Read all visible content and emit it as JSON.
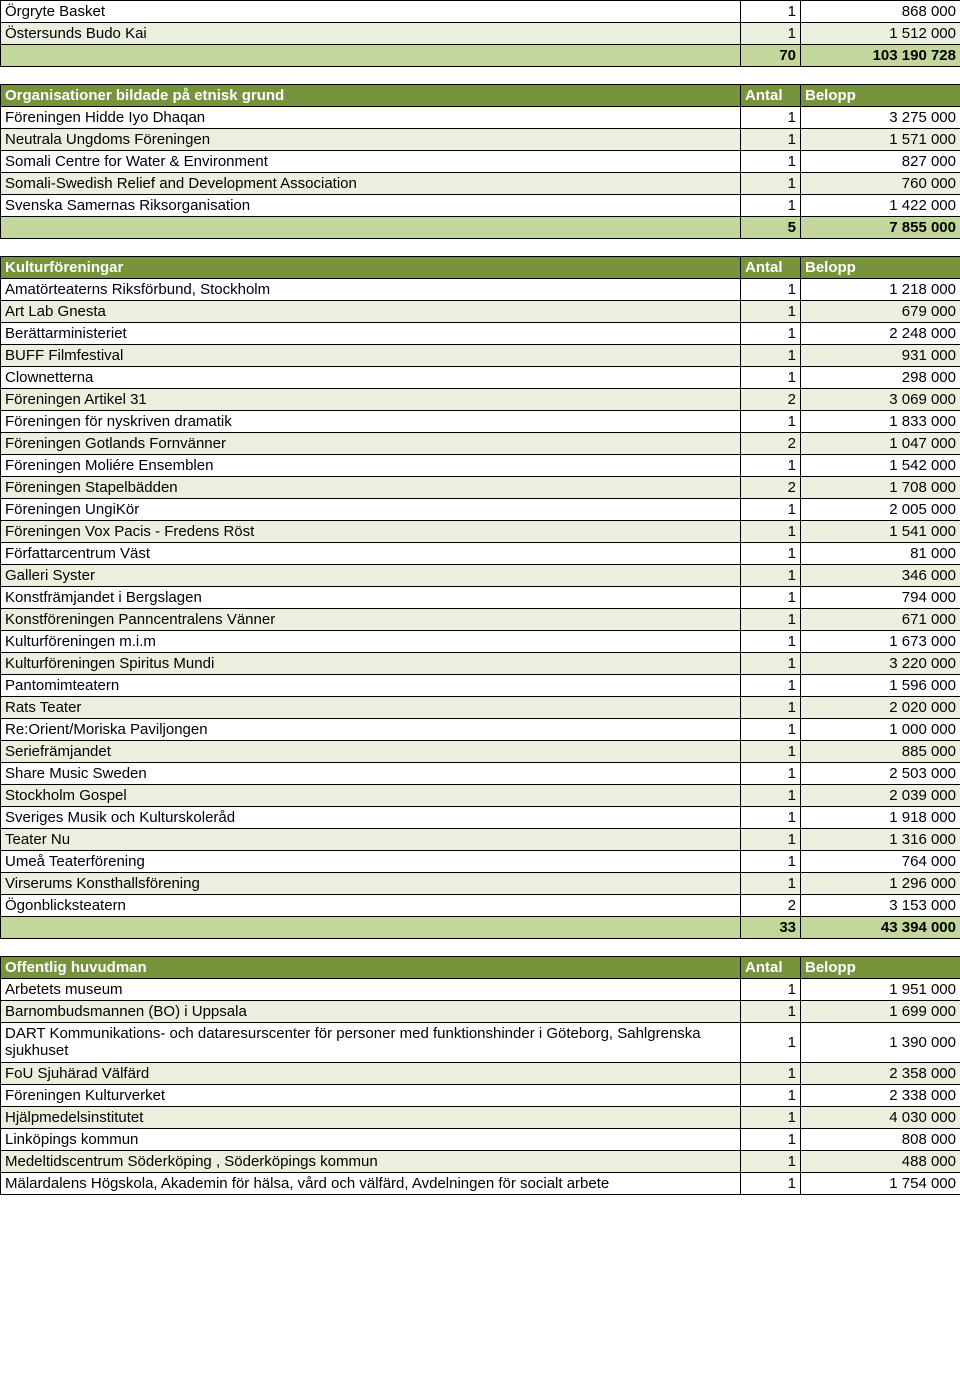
{
  "colors": {
    "row_light": "#ebf0de",
    "total_green": "#c3d69b",
    "header_green": "#77933c",
    "border": "#000000",
    "header_text": "#ffffff",
    "text": "#000000"
  },
  "section0_tail": {
    "rows": [
      {
        "name": "Örgryte Basket",
        "count": "1",
        "amount": "868 000"
      },
      {
        "name": "Östersunds Budo Kai",
        "count": "1",
        "amount": "1 512 000"
      }
    ],
    "total": {
      "count": "70",
      "amount": "103 190 728"
    }
  },
  "section1": {
    "header": {
      "title": "Organisationer bildade på etnisk grund",
      "col2": "Antal",
      "col3": "Belopp"
    },
    "rows": [
      {
        "name": "Föreningen Hidde Iyo Dhaqan",
        "count": "1",
        "amount": "3 275 000"
      },
      {
        "name": "Neutrala Ungdoms Föreningen",
        "count": "1",
        "amount": "1 571 000"
      },
      {
        "name": "Somali Centre for Water & Environment",
        "count": "1",
        "amount": "827 000"
      },
      {
        "name": "Somali-Swedish Relief and Development Association",
        "count": "1",
        "amount": "760 000"
      },
      {
        "name": "Svenska Samernas Riksorganisation",
        "count": "1",
        "amount": "1 422 000"
      }
    ],
    "total": {
      "count": "5",
      "amount": "7 855 000"
    }
  },
  "section2": {
    "header": {
      "title": "Kulturföreningar",
      "col2": "Antal",
      "col3": "Belopp"
    },
    "rows": [
      {
        "name": "Amatörteaterns Riksförbund, Stockholm",
        "count": "1",
        "amount": "1 218 000"
      },
      {
        "name": "Art Lab Gnesta",
        "count": "1",
        "amount": "679 000"
      },
      {
        "name": "Berättarministeriet",
        "count": "1",
        "amount": "2 248 000"
      },
      {
        "name": "BUFF Filmfestival",
        "count": "1",
        "amount": "931 000"
      },
      {
        "name": "Clownetterna",
        "count": "1",
        "amount": "298 000"
      },
      {
        "name": "Föreningen Artikel 31",
        "count": "2",
        "amount": "3 069 000"
      },
      {
        "name": "Föreningen för nyskriven dramatik",
        "count": "1",
        "amount": "1 833 000"
      },
      {
        "name": "Föreningen Gotlands Fornvänner",
        "count": "2",
        "amount": "1 047 000"
      },
      {
        "name": "Föreningen Moliére Ensemblen",
        "count": "1",
        "amount": "1 542 000"
      },
      {
        "name": "Föreningen Stapelbädden",
        "count": "2",
        "amount": "1 708 000"
      },
      {
        "name": "Föreningen UngiKör",
        "count": "1",
        "amount": "2 005 000"
      },
      {
        "name": "Föreningen Vox Pacis - Fredens Röst",
        "count": "1",
        "amount": "1 541 000"
      },
      {
        "name": "Författarcentrum Väst",
        "count": "1",
        "amount": "81 000"
      },
      {
        "name": "Galleri Syster",
        "count": "1",
        "amount": "346 000"
      },
      {
        "name": "Konstfrämjandet i Bergslagen",
        "count": "1",
        "amount": "794 000"
      },
      {
        "name": "Konstföreningen Panncentralens Vänner",
        "count": "1",
        "amount": "671 000"
      },
      {
        "name": "Kulturföreningen m.i.m",
        "count": "1",
        "amount": "1 673 000"
      },
      {
        "name": "Kulturföreningen Spiritus Mundi",
        "count": "1",
        "amount": "3 220 000"
      },
      {
        "name": "Pantomimteatern",
        "count": "1",
        "amount": "1 596 000"
      },
      {
        "name": "Rats Teater",
        "count": "1",
        "amount": "2 020 000"
      },
      {
        "name": "Re:Orient/Moriska Paviljongen",
        "count": "1",
        "amount": "1 000 000"
      },
      {
        "name": "Seriefrämjandet",
        "count": "1",
        "amount": "885 000"
      },
      {
        "name": "Share Music Sweden",
        "count": "1",
        "amount": "2 503 000"
      },
      {
        "name": "Stockholm Gospel",
        "count": "1",
        "amount": "2 039 000"
      },
      {
        "name": "Sveriges Musik och Kulturskoleråd",
        "count": "1",
        "amount": "1 918 000"
      },
      {
        "name": "Teater Nu",
        "count": "1",
        "amount": "1 316 000"
      },
      {
        "name": "Umeå Teaterförening",
        "count": "1",
        "amount": "764 000"
      },
      {
        "name": "Virserums Konsthallsförening",
        "count": "1",
        "amount": "1 296 000"
      },
      {
        "name": "Ögonblicksteatern",
        "count": "2",
        "amount": "3 153 000"
      }
    ],
    "total": {
      "count": "33",
      "amount": "43 394 000"
    }
  },
  "section3": {
    "header": {
      "title": "Offentlig huvudman",
      "col2": "Antal",
      "col3": "Belopp"
    },
    "rows": [
      {
        "name": "Arbetets museum",
        "count": "1",
        "amount": "1 951 000"
      },
      {
        "name": "Barnombudsmannen (BO) i Uppsala",
        "count": "1",
        "amount": "1 699 000"
      },
      {
        "name": "DART Kommunikations- och dataresurscenter för personer med funktionshinder i Göteborg, Sahlgrenska sjukhuset",
        "count": "1",
        "amount": "1 390 000",
        "multiline": true
      },
      {
        "name": "FoU Sjuhärad Välfärd",
        "count": "1",
        "amount": "2 358 000"
      },
      {
        "name": "Föreningen Kulturverket",
        "count": "1",
        "amount": "2 338 000"
      },
      {
        "name": "Hjälpmedelsinstitutet",
        "count": "1",
        "amount": "4 030 000"
      },
      {
        "name": "Linköpings kommun",
        "count": "1",
        "amount": "808 000"
      },
      {
        "name": "Medeltidscentrum Söderköping , Söderköpings kommun",
        "count": "1",
        "amount": "488 000"
      },
      {
        "name": "Mälardalens Högskola, Akademin för hälsa, vård och välfärd, Avdelningen för socialt arbete",
        "count": "1",
        "amount": "1 754 000",
        "multiline": true
      }
    ]
  }
}
